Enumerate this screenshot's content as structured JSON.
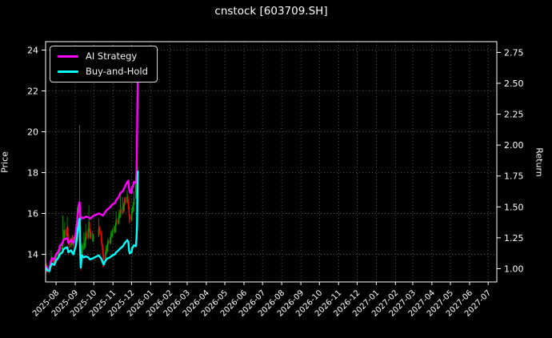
{
  "window": {
    "title": "cnstock [603709.SH]"
  },
  "chart_data": {
    "type": "candlestick",
    "title": "cnstock [603709.SH]",
    "grid": {
      "show": true,
      "style": "dotted",
      "color": "#646464"
    },
    "colors": {
      "background": "#000000",
      "text": "#ffffff",
      "axis": "#ffffff",
      "candle_up": "#00a000",
      "candle_down": "#ff0000",
      "ai_strategy": "#ff00ff",
      "buy_and_hold": "#00ffff"
    },
    "legend": {
      "position": "upper-left",
      "entries": [
        {
          "label": "AI Strategy",
          "color": "#ff00ff"
        },
        {
          "label": "Buy-and-Hold",
          "color": "#00ffff"
        }
      ]
    },
    "x_axis": {
      "range": [
        "2025-07-15",
        "2027-07-15"
      ],
      "ticks": [
        "2025-08",
        "2025-09",
        "2025-10",
        "2025-11",
        "2025-12",
        "2026-01",
        "2026-02",
        "2026-03",
        "2026-04",
        "2026-05",
        "2026-06",
        "2026-07",
        "2026-08",
        "2026-09",
        "2026-10",
        "2026-11",
        "2026-12",
        "2027-01",
        "2027-02",
        "2027-03",
        "2027-04",
        "2027-05",
        "2027-06",
        "2027-07"
      ]
    },
    "left_axis": {
      "label": "Price",
      "range": [
        12.65,
        24.41
      ],
      "ticks": [
        14,
        16,
        18,
        20,
        22,
        24
      ]
    },
    "right_axis": {
      "label": "Return",
      "range": [
        0.893,
        2.837
      ],
      "ticks": [
        "1.00",
        "1.25",
        "1.50",
        "1.75",
        "2.00",
        "2.25",
        "2.50",
        "2.75"
      ]
    },
    "series": [
      {
        "name": "AI Strategy",
        "color": "#ff00ff",
        "points": [
          [
            "2025-07-16",
            13.4
          ],
          [
            "2025-07-18",
            13.3
          ],
          [
            "2025-07-21",
            13.25
          ],
          [
            "2025-07-23",
            13.6
          ],
          [
            "2025-07-25",
            13.8
          ],
          [
            "2025-07-29",
            13.75
          ],
          [
            "2025-08-01",
            14.0
          ],
          [
            "2025-08-05",
            14.15
          ],
          [
            "2025-08-07",
            14.4
          ],
          [
            "2025-08-11",
            14.55
          ],
          [
            "2025-08-13",
            14.7
          ],
          [
            "2025-08-15",
            14.75
          ],
          [
            "2025-08-19",
            14.8
          ],
          [
            "2025-08-21",
            14.55
          ],
          [
            "2025-08-25",
            14.7
          ],
          [
            "2025-08-29",
            14.55
          ],
          [
            "2025-09-02",
            15.1
          ],
          [
            "2025-09-04",
            15.6
          ],
          [
            "2025-09-05",
            15.95
          ],
          [
            "2025-09-08",
            16.55
          ],
          [
            "2025-09-09",
            15.85
          ],
          [
            "2025-09-10",
            15.7
          ],
          [
            "2025-09-11",
            15.8
          ],
          [
            "2025-09-15",
            15.78
          ],
          [
            "2025-09-18",
            15.85
          ],
          [
            "2025-09-22",
            15.82
          ],
          [
            "2025-09-25",
            15.75
          ],
          [
            "2025-09-29",
            15.85
          ],
          [
            "2025-09-30",
            15.88
          ],
          [
            "2025-10-09",
            16.0
          ],
          [
            "2025-10-13",
            15.95
          ],
          [
            "2025-10-16",
            15.9
          ],
          [
            "2025-10-20",
            16.1
          ],
          [
            "2025-10-23",
            16.2
          ],
          [
            "2025-10-27",
            16.3
          ],
          [
            "2025-10-31",
            16.45
          ],
          [
            "2025-11-04",
            16.5
          ],
          [
            "2025-11-06",
            16.65
          ],
          [
            "2025-11-10",
            16.8
          ],
          [
            "2025-11-13",
            17.0
          ],
          [
            "2025-11-17",
            17.1
          ],
          [
            "2025-11-20",
            17.3
          ],
          [
            "2025-11-24",
            17.55
          ],
          [
            "2025-11-26",
            17.6
          ],
          [
            "2025-11-27",
            17.25
          ],
          [
            "2025-11-28",
            17.05
          ],
          [
            "2025-12-01",
            17.0
          ],
          [
            "2025-12-02",
            17.25
          ],
          [
            "2025-12-04",
            17.4
          ],
          [
            "2025-12-05",
            17.55
          ],
          [
            "2025-12-08",
            17.5
          ],
          [
            "2025-12-09",
            17.9
          ],
          [
            "2025-12-10",
            19.85
          ],
          [
            "2025-12-11",
            22.4
          ]
        ]
      },
      {
        "name": "Buy-and-Hold",
        "color": "#00ffff",
        "points": [
          [
            "2025-07-16",
            13.3
          ],
          [
            "2025-07-18",
            13.22
          ],
          [
            "2025-07-21",
            13.18
          ],
          [
            "2025-07-23",
            13.4
          ],
          [
            "2025-07-25",
            13.55
          ],
          [
            "2025-07-29",
            13.48
          ],
          [
            "2025-08-01",
            13.7
          ],
          [
            "2025-08-05",
            13.85
          ],
          [
            "2025-08-07",
            14.0
          ],
          [
            "2025-08-11",
            14.1
          ],
          [
            "2025-08-13",
            14.25
          ],
          [
            "2025-08-15",
            14.3
          ],
          [
            "2025-08-19",
            14.35
          ],
          [
            "2025-08-21",
            14.1
          ],
          [
            "2025-08-25",
            14.2
          ],
          [
            "2025-08-29",
            14.0
          ],
          [
            "2025-09-02",
            14.45
          ],
          [
            "2025-09-04",
            14.9
          ],
          [
            "2025-09-05",
            15.2
          ],
          [
            "2025-09-08",
            15.75
          ],
          [
            "2025-09-09",
            14.0
          ],
          [
            "2025-09-10",
            13.35
          ],
          [
            "2025-09-11",
            13.75
          ],
          [
            "2025-09-12",
            13.95
          ],
          [
            "2025-09-15",
            13.85
          ],
          [
            "2025-09-18",
            13.9
          ],
          [
            "2025-09-22",
            13.85
          ],
          [
            "2025-09-25",
            13.75
          ],
          [
            "2025-09-29",
            13.8
          ],
          [
            "2025-10-09",
            13.95
          ],
          [
            "2025-10-13",
            13.8
          ],
          [
            "2025-10-16",
            13.55
          ],
          [
            "2025-10-17",
            13.5
          ],
          [
            "2025-10-20",
            13.7
          ],
          [
            "2025-10-23",
            13.8
          ],
          [
            "2025-10-27",
            13.85
          ],
          [
            "2025-10-31",
            13.95
          ],
          [
            "2025-11-04",
            14.0
          ],
          [
            "2025-11-06",
            14.1
          ],
          [
            "2025-11-10",
            14.2
          ],
          [
            "2025-11-13",
            14.3
          ],
          [
            "2025-11-17",
            14.4
          ],
          [
            "2025-11-20",
            14.55
          ],
          [
            "2025-11-24",
            14.7
          ],
          [
            "2025-11-26",
            14.6
          ],
          [
            "2025-11-27",
            14.2
          ],
          [
            "2025-11-28",
            14.05
          ],
          [
            "2025-12-01",
            14.1
          ],
          [
            "2025-12-02",
            14.3
          ],
          [
            "2025-12-04",
            14.4
          ],
          [
            "2025-12-05",
            14.45
          ],
          [
            "2025-12-08",
            14.4
          ],
          [
            "2025-12-09",
            14.75
          ],
          [
            "2025-12-10",
            15.4
          ],
          [
            "2025-12-11",
            18.05
          ]
        ]
      }
    ],
    "candles": [
      [
        "2025-07-16",
        13.3,
        13.55,
        13.1,
        13.4
      ],
      [
        "2025-07-17",
        13.4,
        13.5,
        13.15,
        13.3
      ],
      [
        "2025-07-18",
        13.3,
        13.45,
        13.1,
        13.25
      ],
      [
        "2025-07-21",
        13.25,
        13.35,
        13.05,
        13.2
      ],
      [
        "2025-07-22",
        13.2,
        13.5,
        13.15,
        13.45
      ],
      [
        "2025-07-23",
        13.45,
        13.6,
        13.3,
        13.55
      ],
      [
        "2025-07-24",
        13.55,
        14.2,
        13.45,
        13.65
      ],
      [
        "2025-07-25",
        13.65,
        13.9,
        13.55,
        13.75
      ],
      [
        "2025-07-28",
        13.75,
        13.85,
        13.5,
        13.6
      ],
      [
        "2025-07-29",
        13.6,
        13.75,
        13.45,
        13.7
      ],
      [
        "2025-07-30",
        13.7,
        13.85,
        13.55,
        13.65
      ],
      [
        "2025-07-31",
        13.65,
        13.95,
        13.6,
        13.8
      ],
      [
        "2025-08-01",
        13.8,
        14.1,
        13.7,
        13.95
      ],
      [
        "2025-08-04",
        13.95,
        14.2,
        13.85,
        14.1
      ],
      [
        "2025-08-05",
        14.1,
        14.25,
        13.9,
        14.0
      ],
      [
        "2025-08-06",
        14.0,
        14.3,
        13.95,
        14.2
      ],
      [
        "2025-08-07",
        14.2,
        14.5,
        14.1,
        14.35
      ],
      [
        "2025-08-08",
        14.35,
        14.45,
        14.1,
        14.25
      ],
      [
        "2025-08-11",
        14.25,
        14.6,
        14.15,
        14.5
      ],
      [
        "2025-08-12",
        14.5,
        15.9,
        14.4,
        14.65
      ],
      [
        "2025-08-13",
        14.65,
        15.2,
        14.55,
        15.05
      ],
      [
        "2025-08-14",
        15.05,
        15.15,
        14.7,
        14.8
      ],
      [
        "2025-08-15",
        14.8,
        15.6,
        14.75,
        15.2
      ],
      [
        "2025-08-18",
        15.2,
        15.3,
        14.8,
        14.9
      ],
      [
        "2025-08-19",
        14.9,
        15.85,
        14.85,
        15.3
      ],
      [
        "2025-08-20",
        15.3,
        15.4,
        14.85,
        14.95
      ],
      [
        "2025-08-21",
        14.95,
        15.05,
        14.5,
        14.6
      ],
      [
        "2025-08-22",
        14.6,
        14.75,
        14.3,
        14.45
      ],
      [
        "2025-08-25",
        14.45,
        14.8,
        14.35,
        14.7
      ],
      [
        "2025-08-26",
        14.7,
        14.8,
        14.4,
        14.5
      ],
      [
        "2025-08-27",
        14.5,
        14.95,
        14.45,
        14.85
      ],
      [
        "2025-08-28",
        14.85,
        14.95,
        14.5,
        14.6
      ],
      [
        "2025-08-29",
        14.6,
        14.7,
        14.3,
        14.4
      ],
      [
        "2025-09-01",
        14.4,
        14.85,
        14.35,
        14.75
      ],
      [
        "2025-09-02",
        14.75,
        15.2,
        14.7,
        15.1
      ],
      [
        "2025-09-03",
        15.1,
        15.55,
        15.0,
        15.45
      ],
      [
        "2025-09-04",
        15.45,
        16.3,
        15.35,
        15.9
      ],
      [
        "2025-09-05",
        15.6,
        16.45,
        15.4,
        16.0
      ],
      [
        "2025-09-08",
        15.6,
        20.35,
        15.1,
        15.75
      ],
      [
        "2025-09-09",
        15.7,
        15.8,
        13.9,
        14.2
      ],
      [
        "2025-09-10",
        14.2,
        14.35,
        13.2,
        13.6
      ],
      [
        "2025-09-11",
        13.6,
        14.15,
        13.5,
        14.05
      ],
      [
        "2025-09-12",
        14.05,
        14.55,
        13.95,
        14.45
      ],
      [
        "2025-09-15",
        14.25,
        15.1,
        14.2,
        14.55
      ],
      [
        "2025-09-16",
        14.55,
        14.65,
        14.25,
        14.35
      ],
      [
        "2025-09-17",
        14.35,
        14.85,
        14.3,
        14.75
      ],
      [
        "2025-09-18",
        14.75,
        15.5,
        14.7,
        15.05
      ],
      [
        "2025-09-19",
        15.05,
        15.15,
        14.7,
        14.8
      ],
      [
        "2025-09-22",
        14.8,
        15.3,
        14.75,
        15.2
      ],
      [
        "2025-09-23",
        15.2,
        16.4,
        15.1,
        15.55
      ],
      [
        "2025-09-24",
        15.55,
        15.65,
        15.05,
        15.15
      ],
      [
        "2025-09-25",
        15.15,
        15.25,
        14.75,
        14.85
      ],
      [
        "2025-09-26",
        14.85,
        15.15,
        14.75,
        15.05
      ],
      [
        "2025-09-29",
        15.05,
        15.15,
        14.6,
        14.7
      ],
      [
        "2025-09-30",
        14.7,
        15.0,
        14.6,
        14.9
      ],
      [
        "2025-10-09",
        14.9,
        15.75,
        14.85,
        15.3
      ],
      [
        "2025-10-10",
        15.3,
        15.4,
        14.95,
        15.05
      ],
      [
        "2025-10-13",
        15.05,
        15.15,
        14.6,
        14.7
      ],
      [
        "2025-10-14",
        14.7,
        14.8,
        14.35,
        14.45
      ],
      [
        "2025-10-15",
        14.45,
        14.55,
        14.1,
        14.2
      ],
      [
        "2025-10-16",
        14.2,
        14.3,
        13.35,
        13.95
      ],
      [
        "2025-10-17",
        13.95,
        14.05,
        13.4,
        13.75
      ],
      [
        "2025-10-20",
        13.75,
        14.2,
        13.65,
        14.1
      ],
      [
        "2025-10-21",
        14.1,
        14.45,
        14.0,
        14.35
      ],
      [
        "2025-10-22",
        14.35,
        14.45,
        14.05,
        14.15
      ],
      [
        "2025-10-23",
        14.15,
        14.6,
        14.1,
        14.5
      ],
      [
        "2025-10-24",
        14.5,
        14.8,
        14.4,
        14.7
      ],
      [
        "2025-10-27",
        14.7,
        14.8,
        14.45,
        14.55
      ],
      [
        "2025-10-28",
        14.55,
        14.95,
        14.5,
        14.85
      ],
      [
        "2025-10-29",
        14.85,
        15.15,
        14.75,
        15.05
      ],
      [
        "2025-10-30",
        15.05,
        15.15,
        14.8,
        14.9
      ],
      [
        "2025-10-31",
        14.9,
        15.25,
        14.85,
        15.15
      ],
      [
        "2025-11-03",
        15.15,
        15.4,
        15.05,
        15.3
      ],
      [
        "2025-11-04",
        15.3,
        15.4,
        15.0,
        15.1
      ],
      [
        "2025-11-05",
        15.1,
        15.55,
        15.05,
        15.45
      ],
      [
        "2025-11-06",
        15.45,
        16.1,
        15.4,
        15.65
      ],
      [
        "2025-11-07",
        15.65,
        15.75,
        15.4,
        15.5
      ],
      [
        "2025-11-10",
        15.5,
        15.9,
        15.45,
        15.8
      ],
      [
        "2025-11-11",
        15.8,
        16.15,
        15.7,
        16.05
      ],
      [
        "2025-11-12",
        16.05,
        16.15,
        15.75,
        15.85
      ],
      [
        "2025-11-13",
        15.85,
        17.0,
        15.8,
        16.2
      ],
      [
        "2025-11-14",
        16.2,
        16.3,
        15.9,
        16.0
      ],
      [
        "2025-11-17",
        16.0,
        16.8,
        15.95,
        16.35
      ],
      [
        "2025-11-18",
        16.35,
        16.45,
        16.05,
        16.15
      ],
      [
        "2025-11-19",
        16.15,
        16.6,
        16.1,
        16.5
      ],
      [
        "2025-11-20",
        16.5,
        16.8,
        16.4,
        16.7
      ],
      [
        "2025-11-21",
        16.7,
        16.8,
        16.45,
        16.55
      ],
      [
        "2025-11-24",
        16.55,
        17.15,
        16.5,
        16.85
      ],
      [
        "2025-11-25",
        16.85,
        16.95,
        16.5,
        16.6
      ],
      [
        "2025-11-26",
        16.6,
        16.7,
        16.2,
        16.3
      ],
      [
        "2025-11-27",
        16.3,
        16.4,
        15.5,
        15.9
      ],
      [
        "2025-11-28",
        15.9,
        16.0,
        15.55,
        15.7
      ],
      [
        "2025-12-01",
        15.7,
        16.05,
        15.6,
        15.95
      ],
      [
        "2025-12-02",
        15.95,
        16.35,
        15.9,
        16.25
      ],
      [
        "2025-12-03",
        16.25,
        16.35,
        16.0,
        16.1
      ],
      [
        "2025-12-04",
        16.1,
        16.55,
        16.05,
        16.45
      ],
      [
        "2025-12-05",
        16.45,
        17.1,
        16.4,
        16.75
      ],
      [
        "2025-12-08",
        16.75,
        17.7,
        16.7,
        17.4
      ],
      [
        "2025-12-09",
        17.4,
        17.9,
        17.0,
        17.8
      ],
      [
        "2025-12-10",
        19.9,
        20.3,
        16.9,
        17.1
      ],
      [
        "2025-12-11",
        17.3,
        18.3,
        16.8,
        18.05
      ]
    ]
  }
}
